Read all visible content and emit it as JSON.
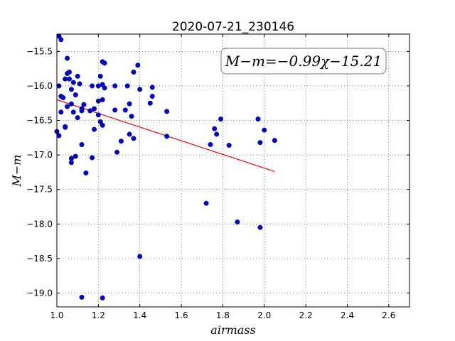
{
  "chart_data": {
    "type": "scatter",
    "title": "2020-07-21_230146",
    "xlabel": "airmass",
    "ylabel": "M−m",
    "xlim": [
      1.0,
      2.7
    ],
    "ylim": [
      -19.2,
      -15.25
    ],
    "y_inverted": true,
    "grid": true,
    "grid_style": "dotted",
    "x_ticks": [
      1.0,
      1.2,
      1.4,
      1.6,
      1.8,
      2.0,
      2.2,
      2.4,
      2.6
    ],
    "x_tick_labels": [
      "1.0",
      "1.2",
      "1.4",
      "1.6",
      "1.8",
      "2.0",
      "2.2",
      "2.4",
      "2.6"
    ],
    "y_ticks": [
      -15.5,
      -16.0,
      -16.5,
      -17.0,
      -17.5,
      -18.0,
      -18.5,
      -19.0
    ],
    "y_tick_labels": [
      "−15.5",
      "−16.0",
      "−16.5",
      "−17.0",
      "−17.5",
      "−18.0",
      "−18.5",
      "−19.0"
    ],
    "annotation": "M−m=−0.99χ−15.21",
    "annotation_placement": "top-right",
    "fit_line": {
      "slope": -0.99,
      "intercept": -15.21,
      "x_range": [
        1.0,
        2.05
      ],
      "color": "#ee0000"
    },
    "series": [
      {
        "marker_color": "#0000cc",
        "points": [
          [
            1.01,
            -15.28
          ],
          [
            1.02,
            -15.33
          ],
          [
            1.05,
            -15.6
          ],
          [
            1.05,
            -15.82
          ],
          [
            1.06,
            -15.8
          ],
          [
            1.04,
            -15.9
          ],
          [
            1.06,
            -15.9
          ],
          [
            1.1,
            -15.86
          ],
          [
            1.08,
            -15.95
          ],
          [
            1.01,
            -16.0
          ],
          [
            1.07,
            -16.05
          ],
          [
            1.11,
            -15.97
          ],
          [
            1.02,
            -16.15
          ],
          [
            1.03,
            -16.17
          ],
          [
            1.05,
            -16.3
          ],
          [
            1.07,
            -16.26
          ],
          [
            1.09,
            -16.13
          ],
          [
            1.02,
            -16.38
          ],
          [
            1.08,
            -16.38
          ],
          [
            1.1,
            -16.46
          ],
          [
            1.12,
            -16.33
          ],
          [
            1.12,
            -16.36
          ],
          [
            1.04,
            -16.59
          ],
          [
            1.04,
            -16.6
          ],
          [
            1.0,
            -16.66
          ],
          [
            1.01,
            -16.72
          ],
          [
            1.13,
            -16.27
          ],
          [
            1.16,
            -16.36
          ],
          [
            1.17,
            -16.0
          ],
          [
            1.18,
            -16.33
          ],
          [
            1.18,
            -16.63
          ],
          [
            1.2,
            -16.0
          ],
          [
            1.2,
            -16.22
          ],
          [
            1.2,
            -16.42
          ],
          [
            1.21,
            -16.52
          ],
          [
            1.22,
            -16.57
          ],
          [
            1.21,
            -15.86
          ],
          [
            1.22,
            -15.98
          ],
          [
            1.23,
            -16.03
          ],
          [
            1.22,
            -15.65
          ],
          [
            1.23,
            -15.67
          ],
          [
            1.22,
            -16.2
          ],
          [
            1.12,
            -16.85
          ],
          [
            1.09,
            -17.02
          ],
          [
            1.07,
            -17.05
          ],
          [
            1.07,
            -17.11
          ],
          [
            1.17,
            -17.04
          ],
          [
            1.14,
            -17.26
          ],
          [
            1.28,
            -16.0
          ],
          [
            1.28,
            -16.35
          ],
          [
            1.29,
            -16.96
          ],
          [
            1.31,
            -16.8
          ],
          [
            1.33,
            -16.35
          ],
          [
            1.34,
            -16.0
          ],
          [
            1.35,
            -16.26
          ],
          [
            1.35,
            -16.7
          ],
          [
            1.36,
            -16.44
          ],
          [
            1.37,
            -16.76
          ],
          [
            1.37,
            -15.8
          ],
          [
            1.39,
            -15.7
          ],
          [
            1.4,
            -16.05
          ],
          [
            1.45,
            -16.25
          ],
          [
            1.46,
            -16.02
          ],
          [
            1.46,
            -16.15
          ],
          [
            1.53,
            -16.37
          ],
          [
            1.53,
            -16.73
          ],
          [
            1.4,
            -18.47
          ],
          [
            1.12,
            -19.06
          ],
          [
            1.22,
            -19.07
          ],
          [
            1.72,
            -17.7
          ],
          [
            1.74,
            -16.85
          ],
          [
            1.76,
            -16.62
          ],
          [
            1.77,
            -16.7
          ],
          [
            1.79,
            -16.48
          ],
          [
            1.83,
            -16.86
          ],
          [
            1.87,
            -17.97
          ],
          [
            1.97,
            -16.48
          ],
          [
            1.98,
            -16.82
          ],
          [
            2.0,
            -16.64
          ],
          [
            2.05,
            -16.79
          ],
          [
            1.98,
            -18.05
          ]
        ]
      }
    ]
  }
}
